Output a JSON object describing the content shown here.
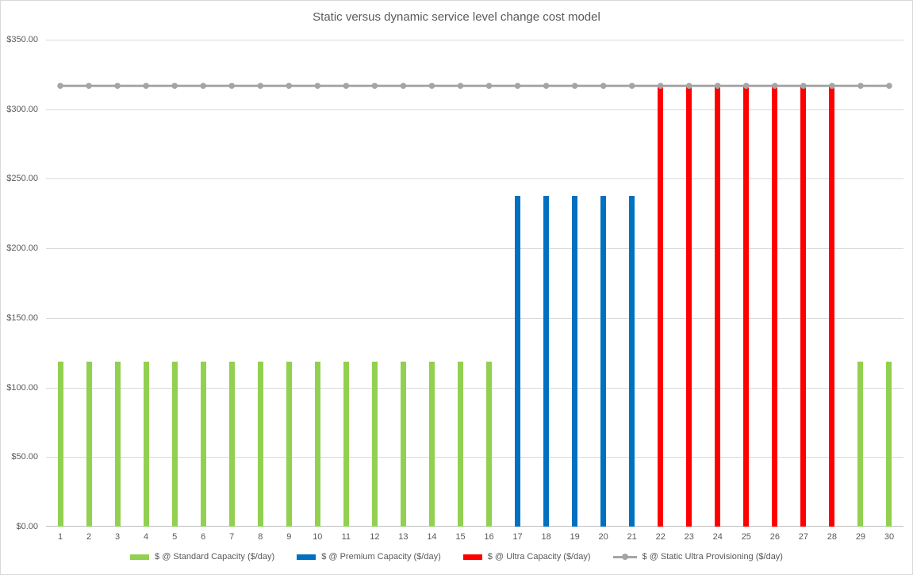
{
  "page": {
    "background": "#FFFFFF",
    "border_color": "#D9D9D9"
  },
  "chart_data": {
    "type": "bar",
    "title": "Static versus dynamic service level change cost model",
    "title_color": "#595959",
    "xlabel": "",
    "ylabel": "",
    "categories": [
      "1",
      "2",
      "3",
      "4",
      "5",
      "6",
      "7",
      "8",
      "9",
      "10",
      "11",
      "12",
      "13",
      "14",
      "15",
      "16",
      "17",
      "18",
      "19",
      "20",
      "21",
      "22",
      "23",
      "24",
      "25",
      "26",
      "27",
      "28",
      "29",
      "30"
    ],
    "ylim": [
      0,
      350
    ],
    "yticks": [
      {
        "value": 0,
        "label": "$0.00"
      },
      {
        "value": 50,
        "label": "$50.00"
      },
      {
        "value": 100,
        "label": "$100.00"
      },
      {
        "value": 150,
        "label": "$150.00"
      },
      {
        "value": 200,
        "label": "$200.00"
      },
      {
        "value": 250,
        "label": "$250.00"
      },
      {
        "value": 300,
        "label": "$300.00"
      },
      {
        "value": 350,
        "label": "$350.00"
      }
    ],
    "grid": "horizontal",
    "grid_color": "#D9D9D9",
    "axis_line_color": "#BFBFBF",
    "tick_label_color": "#595959",
    "legend_position": "bottom",
    "series": [
      {
        "key": "standard-capacity",
        "name": "$ @ Standard Capacity ($/day)",
        "type": "bar",
        "color": "#92D050",
        "values": [
          118.8,
          118.8,
          118.8,
          118.8,
          118.8,
          118.8,
          118.8,
          118.8,
          118.8,
          118.8,
          118.8,
          118.8,
          118.8,
          118.8,
          118.8,
          118.8,
          null,
          null,
          null,
          null,
          null,
          null,
          null,
          null,
          null,
          null,
          null,
          null,
          118.8,
          118.8
        ]
      },
      {
        "key": "premium-capacity",
        "name": "$ @ Premium Capacity ($/day)",
        "type": "bar",
        "color": "#0070C0",
        "values": [
          null,
          null,
          null,
          null,
          null,
          null,
          null,
          null,
          null,
          null,
          null,
          null,
          null,
          null,
          null,
          null,
          237.6,
          237.6,
          237.6,
          237.6,
          237.6,
          null,
          null,
          null,
          null,
          null,
          null,
          null,
          null,
          null
        ]
      },
      {
        "key": "ultra-capacity",
        "name": "$ @ Ultra Capacity ($/day)",
        "type": "bar",
        "color": "#FF0000",
        "values": [
          null,
          null,
          null,
          null,
          null,
          null,
          null,
          null,
          null,
          null,
          null,
          null,
          null,
          null,
          null,
          null,
          null,
          null,
          null,
          null,
          null,
          316.8,
          316.8,
          316.8,
          316.8,
          316.8,
          316.8,
          316.8,
          null,
          null
        ]
      },
      {
        "key": "static-ultra-provisioning",
        "name": "$ @ Static Ultra Provisioning ($/day)",
        "type": "line",
        "color": "#A5A5A5",
        "values": [
          316.8,
          316.8,
          316.8,
          316.8,
          316.8,
          316.8,
          316.8,
          316.8,
          316.8,
          316.8,
          316.8,
          316.8,
          316.8,
          316.8,
          316.8,
          316.8,
          316.8,
          316.8,
          316.8,
          316.8,
          316.8,
          316.8,
          316.8,
          316.8,
          316.8,
          316.8,
          316.8,
          316.8,
          316.8,
          316.8
        ]
      }
    ]
  }
}
